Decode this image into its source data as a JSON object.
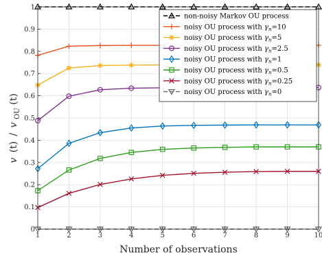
{
  "chart_data": {
    "type": "line",
    "xlabel": "Number of observations",
    "ylabel": "v (t) / v_OU(t)",
    "ylabel_parts": {
      "v1": "v",
      "t1": "(t)",
      "sep": "/",
      "v2": "v",
      "sub": "OU",
      "t2": "(t)"
    },
    "xlim": [
      1,
      10
    ],
    "ylim": [
      0,
      1
    ],
    "x": [
      1,
      2,
      3,
      4,
      5,
      6,
      7,
      8,
      9,
      10
    ],
    "x_ticks": [
      "1",
      "2",
      "3",
      "4",
      "5",
      "6",
      "7",
      "8",
      "9",
      "10"
    ],
    "y_ticks": [
      "0",
      "0.1",
      "0.2",
      "0.3",
      "0.4",
      "0.5",
      "0.6",
      "0.7",
      "0.8",
      "0.9",
      "1"
    ],
    "grid": true,
    "legend_position": "top-right",
    "series": [
      {
        "name": "non-noisy Markov OU process",
        "color": "#000000",
        "marker": "triangle-up",
        "dash": true,
        "values": [
          1,
          1,
          1,
          1,
          1,
          1,
          1,
          1,
          1,
          1
        ]
      },
      {
        "name_prefix": "noisy OU process with ",
        "gamma_symbol": "γ",
        "gamma_sub": "n",
        "gamma_value": "10",
        "color": "#e8501e",
        "marker": "plus",
        "dash": false,
        "values": [
          0.782,
          0.823,
          0.826,
          0.827,
          0.827,
          0.827,
          0.827,
          0.827,
          0.827,
          0.827
        ]
      },
      {
        "name_prefix": "noisy OU process with ",
        "gamma_symbol": "γ",
        "gamma_sub": "n",
        "gamma_value": "5",
        "color": "#f5b21c",
        "marker": "asterisk",
        "dash": false,
        "values": [
          0.648,
          0.725,
          0.736,
          0.738,
          0.739,
          0.739,
          0.739,
          0.739,
          0.739,
          0.739
        ]
      },
      {
        "name_prefix": "noisy OU process with ",
        "gamma_symbol": "γ",
        "gamma_sub": "n",
        "gamma_value": "2.5",
        "color": "#7e2f8e",
        "marker": "circle",
        "dash": false,
        "values": [
          0.488,
          0.598,
          0.627,
          0.634,
          0.636,
          0.637,
          0.637,
          0.637,
          0.637,
          0.637
        ]
      },
      {
        "name_prefix": "noisy OU process with ",
        "gamma_symbol": "γ",
        "gamma_sub": "n",
        "gamma_value": "1",
        "color": "#0072bd",
        "marker": "diamond",
        "dash": false,
        "values": [
          0.272,
          0.386,
          0.434,
          0.455,
          0.464,
          0.467,
          0.468,
          0.469,
          0.469,
          0.469
        ]
      },
      {
        "name_prefix": "noisy OU process with ",
        "gamma_symbol": "γ",
        "gamma_sub": "n",
        "gamma_value": "0.5",
        "color": "#2e9f1c",
        "marker": "square",
        "dash": false,
        "values": [
          0.173,
          0.266,
          0.318,
          0.345,
          0.359,
          0.365,
          0.368,
          0.37,
          0.37,
          0.37
        ]
      },
      {
        "name_prefix": "noisy OU process with ",
        "gamma_symbol": "γ",
        "gamma_sub": "n",
        "gamma_value": "0.25",
        "color": "#a2142f",
        "marker": "x",
        "dash": false,
        "values": [
          0.097,
          0.161,
          0.201,
          0.226,
          0.242,
          0.251,
          0.256,
          0.259,
          0.26,
          0.26
        ]
      },
      {
        "name_prefix": "noisy OU process with ",
        "gamma_symbol": "γ",
        "gamma_sub": "n",
        "gamma_value": "0",
        "color": "#666666",
        "marker": "triangle-down",
        "dash": true,
        "values": [
          0,
          0,
          0,
          0,
          0,
          0,
          0,
          0,
          0,
          0
        ]
      }
    ]
  }
}
